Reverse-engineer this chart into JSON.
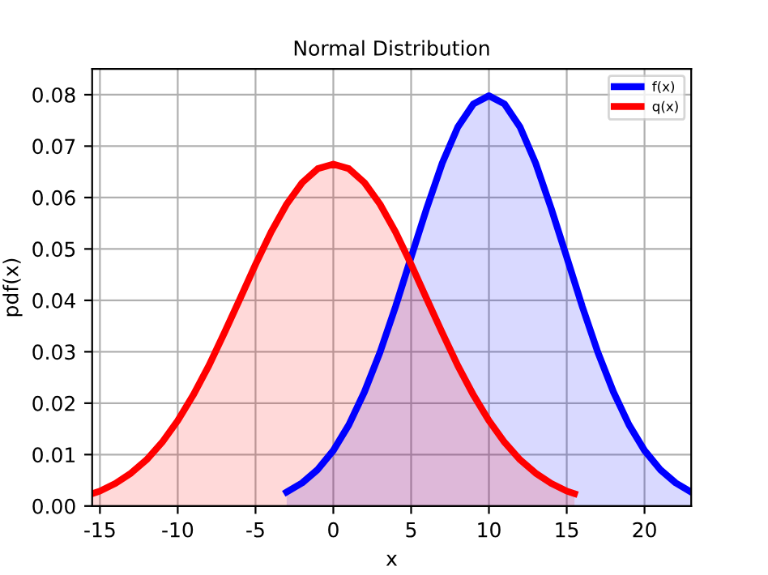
{
  "chart_data": {
    "type": "area",
    "title": "Normal Distribution",
    "xlabel": "x",
    "ylabel": "pdf(x)",
    "series": [
      {
        "name": "f(x)",
        "color": "#0000ff",
        "x": [
          -3,
          -2,
          -1,
          0,
          1,
          2,
          3,
          4,
          5,
          6,
          7,
          8,
          9,
          10,
          11,
          12,
          13,
          14,
          15,
          16,
          17,
          18,
          19,
          20,
          21,
          22,
          23
        ],
        "values": [
          0.0027,
          0.0045,
          0.0071,
          0.0108,
          0.0158,
          0.0222,
          0.0299,
          0.0388,
          0.0484,
          0.0579,
          0.0667,
          0.0737,
          0.0782,
          0.0798,
          0.0782,
          0.0737,
          0.0667,
          0.0579,
          0.0484,
          0.0388,
          0.0299,
          0.0222,
          0.0158,
          0.0108,
          0.0071,
          0.0045,
          0.0027
        ]
      },
      {
        "name": "q(x)",
        "color": "#ff0000",
        "x": [
          -15.5,
          -15,
          -14,
          -13,
          -12,
          -11,
          -10,
          -9,
          -8,
          -7,
          -6,
          -5,
          -4,
          -3,
          -2,
          -1,
          0,
          1,
          2,
          3,
          4,
          5,
          6,
          7,
          8,
          9,
          10,
          11,
          12,
          13,
          14,
          15,
          15.5
        ],
        "values": [
          0.0024,
          0.0029,
          0.0044,
          0.0064,
          0.009,
          0.0124,
          0.0166,
          0.0216,
          0.0273,
          0.0337,
          0.0403,
          0.047,
          0.0533,
          0.0587,
          0.0629,
          0.0656,
          0.0665,
          0.0656,
          0.0629,
          0.0587,
          0.0533,
          0.047,
          0.0403,
          0.0337,
          0.0273,
          0.0216,
          0.0166,
          0.0124,
          0.009,
          0.0064,
          0.0044,
          0.0029,
          0.0024
        ]
      }
    ],
    "xlim": [
      -15.5,
      23
    ],
    "xticks": [
      -15,
      -10,
      -5,
      0,
      5,
      10,
      15,
      20
    ],
    "ylim": [
      0,
      0.085
    ],
    "yticks": [
      {
        "value": 0,
        "label": "0.00"
      },
      0.01,
      0.02,
      0.03,
      0.04,
      0.05,
      0.06,
      0.07,
      0.08
    ],
    "grid": true,
    "legend": "top right"
  }
}
